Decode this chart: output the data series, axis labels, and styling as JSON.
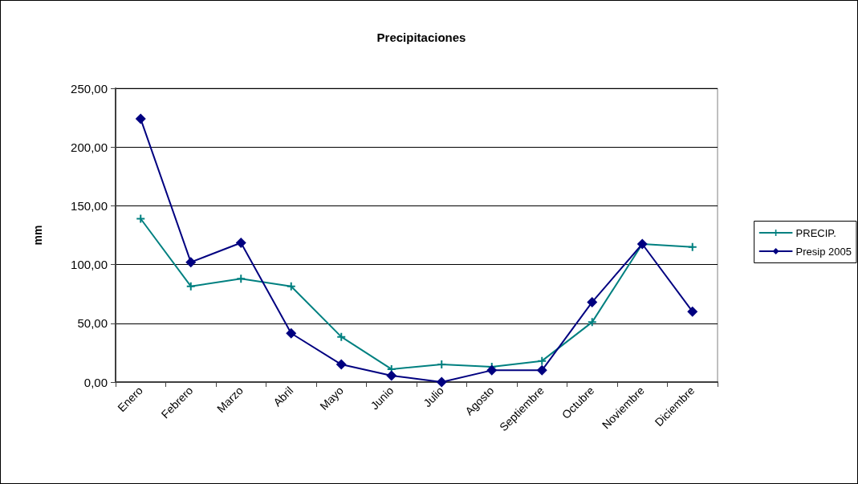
{
  "chart_data": {
    "type": "line",
    "title": "Precipitaciones",
    "ylabel": "mm",
    "categories": [
      "Enero",
      "Febrero",
      "Marzo",
      "Abril",
      "Mayo",
      "Junio",
      "Julio",
      "Agosto",
      "Septiembre",
      "Octubre",
      "Noviembre",
      "Diciembre"
    ],
    "series": [
      {
        "name": "PRECIP.",
        "color": "#008080",
        "marker": "cross",
        "values": [
          139,
          81.5,
          88,
          81.5,
          38.5,
          11,
          15,
          13,
          18,
          51,
          117.5,
          115
        ]
      },
      {
        "name": "Presip 2005",
        "color": "#000080",
        "marker": "diamond",
        "values": [
          224,
          102,
          118.5,
          41.5,
          15,
          5.5,
          0,
          10,
          10,
          68,
          117.5,
          60
        ]
      }
    ],
    "ylim": [
      0,
      250
    ],
    "yticks": [
      {
        "value": 0,
        "label": "0,00"
      },
      {
        "value": 50,
        "label": "50,00"
      },
      {
        "value": 100,
        "label": "100,00"
      },
      {
        "value": 150,
        "label": "150,00"
      },
      {
        "value": 200,
        "label": "200,00"
      },
      {
        "value": 250,
        "label": "250,00"
      }
    ],
    "grid": "y",
    "legend": "right",
    "line_style": "solid"
  }
}
